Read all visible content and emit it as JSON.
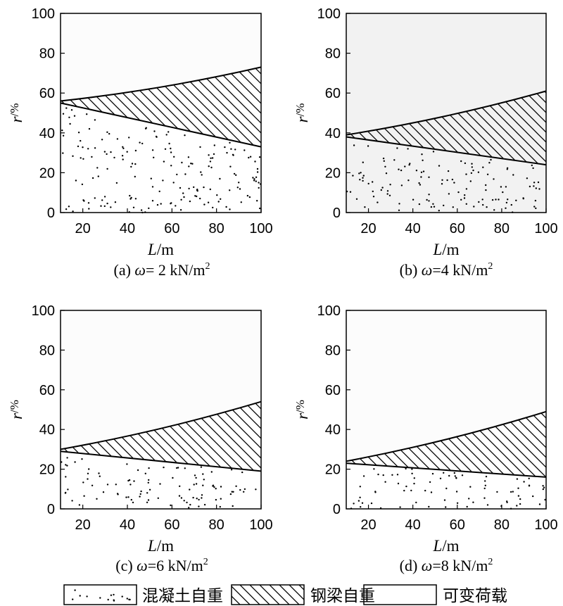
{
  "chart_data": [
    {
      "type": "area",
      "caption": {
        "prefix": "(a) ",
        "symbol": "ω",
        "text": "= 2 kN/m",
        "sup": "2"
      },
      "xlabel": {
        "var": "L",
        "unit": "/m"
      },
      "ylabel": {
        "var": "r",
        "unit": "/%"
      },
      "xlim": [
        10,
        100
      ],
      "ylim": [
        0,
        100
      ],
      "xticks": [
        20,
        40,
        60,
        80,
        100
      ],
      "yticks": [
        0,
        20,
        40,
        60,
        80,
        100
      ],
      "x": [
        10,
        100
      ],
      "boundaries": {
        "concrete_top": [
          55,
          33
        ],
        "steel_top": [
          56,
          73
        ]
      },
      "shaded": false
    },
    {
      "type": "area",
      "caption": {
        "prefix": "(b) ",
        "symbol": "ω",
        "text": "=4 kN/m",
        "sup": "2"
      },
      "xlabel": {
        "var": "L",
        "unit": "/m"
      },
      "ylabel": {
        "var": "r",
        "unit": "/%"
      },
      "xlim": [
        10,
        100
      ],
      "ylim": [
        0,
        100
      ],
      "xticks": [
        20,
        40,
        60,
        80,
        100
      ],
      "yticks": [
        0,
        20,
        40,
        60,
        80,
        100
      ],
      "x": [
        10,
        100
      ],
      "boundaries": {
        "concrete_top": [
          38,
          24
        ],
        "steel_top": [
          39,
          61
        ]
      },
      "shaded": true
    },
    {
      "type": "area",
      "caption": {
        "prefix": "(c) ",
        "symbol": "ω",
        "text": "=6 kN/m",
        "sup": "2"
      },
      "xlabel": {
        "var": "L",
        "unit": "/m"
      },
      "ylabel": {
        "var": "r",
        "unit": "/%"
      },
      "xlim": [
        10,
        100
      ],
      "ylim": [
        0,
        100
      ],
      "xticks": [
        20,
        40,
        60,
        80,
        100
      ],
      "yticks": [
        0,
        20,
        40,
        60,
        80,
        100
      ],
      "x": [
        10,
        100
      ],
      "boundaries": {
        "concrete_top": [
          29,
          19
        ],
        "steel_top": [
          30,
          54
        ]
      },
      "shaded": false
    },
    {
      "type": "area",
      "caption": {
        "prefix": "(d) ",
        "symbol": "ω",
        "text": "=8 kN/m",
        "sup": "2"
      },
      "xlabel": {
        "var": "L",
        "unit": "/m"
      },
      "ylabel": {
        "var": "r",
        "unit": "/%"
      },
      "xlim": [
        10,
        100
      ],
      "ylim": [
        0,
        100
      ],
      "xticks": [
        20,
        40,
        60,
        80,
        100
      ],
      "yticks": [
        0,
        20,
        40,
        60,
        80,
        100
      ],
      "x": [
        10,
        100
      ],
      "boundaries": {
        "concrete_top": [
          23,
          16
        ],
        "steel_top": [
          24,
          49
        ]
      },
      "shaded": false
    }
  ],
  "legend": {
    "placement": "bottom",
    "items": [
      {
        "label": "混凝土自重",
        "pattern": "dots"
      },
      {
        "label": "钢梁自重",
        "pattern": "hatch"
      },
      {
        "label": "可变荷载",
        "pattern": "empty"
      }
    ]
  },
  "colors": {
    "line": "#000000",
    "background": "#ffffff",
    "shade": "#f2f2f2"
  }
}
